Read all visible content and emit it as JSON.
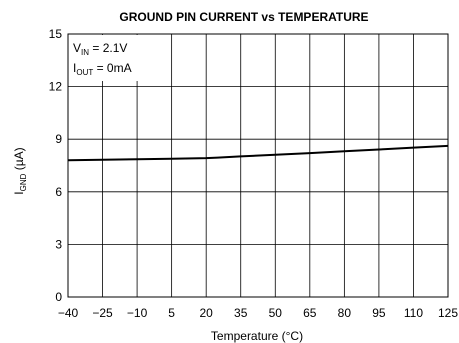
{
  "chart_data": {
    "type": "line",
    "title": "GROUND PIN CURRENT vs TEMPERATURE",
    "xlabel": "Temperature (°C)",
    "ylabel": {
      "main": "I",
      "sub": "GND",
      "unit": " (µA)"
    },
    "x_ticks": [
      -40,
      -25,
      -10,
      5,
      20,
      35,
      50,
      65,
      80,
      95,
      110,
      125
    ],
    "x_tick_labels": [
      "−40",
      "−25",
      "−10",
      "5",
      "20",
      "35",
      "50",
      "65",
      "80",
      "95",
      "110",
      "125"
    ],
    "y_ticks": [
      0,
      3,
      6,
      9,
      12,
      15
    ],
    "y_tick_labels": [
      "0",
      "3",
      "6",
      "9",
      "12",
      "15"
    ],
    "xlim": [
      -40,
      125
    ],
    "ylim": [
      0,
      15
    ],
    "grid": true,
    "annotations": [
      {
        "main": "V",
        "sub": "IN",
        "rest": " = 2.1V"
      },
      {
        "main": "I",
        "sub": "OUT",
        "rest": " = 0mA"
      }
    ],
    "series": [
      {
        "x": [
          -40,
          -25,
          -10,
          5,
          20,
          25,
          35,
          50,
          65,
          80,
          95,
          110,
          125
        ],
        "y": [
          7.8,
          7.83,
          7.86,
          7.89,
          7.92,
          7.95,
          8.02,
          8.11,
          8.21,
          8.31,
          8.41,
          8.52,
          8.62
        ]
      }
    ],
    "colors": {
      "line": "#000000",
      "grid": "#000000",
      "frame": "#000000"
    }
  }
}
